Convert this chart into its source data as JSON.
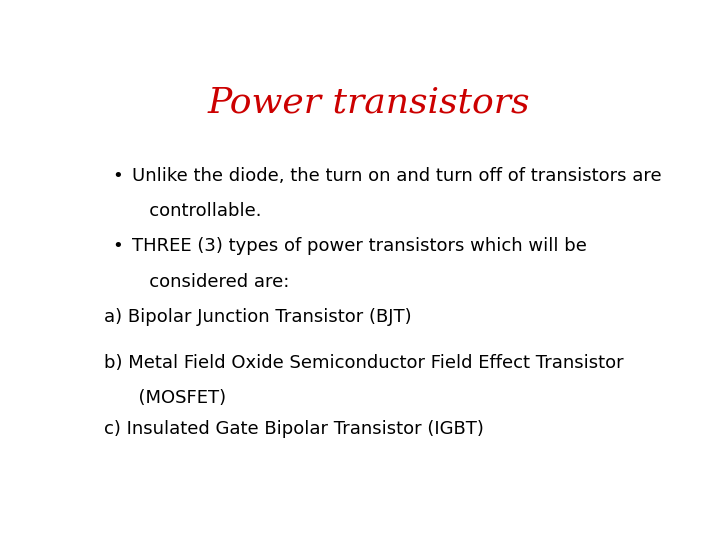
{
  "title": "Power transistors",
  "title_color": "#cc0000",
  "title_fontsize": 26,
  "title_font": "serif",
  "title_bold": false,
  "title_style": "normal",
  "background_color": "#ffffff",
  "text_color": "#000000",
  "text_fontsize": 13,
  "text_font": "sans-serif",
  "bullet1_line1": "Unlike the diode, the turn on and turn off of transistors are",
  "bullet1_line2": "   controllable.",
  "bullet2_line1": "THREE (3) types of power transistors which will be",
  "bullet2_line2": "   considered are:",
  "list_a_line1": "a) Bipolar Junction Transistor (BJT)",
  "list_b_line1": "b) Metal Field Oxide Semiconductor Field Effect Transistor",
  "list_b_line2": "      (MOSFET)",
  "list_c_line1": "c) Insulated Gate Bipolar Transistor (IGBT)"
}
